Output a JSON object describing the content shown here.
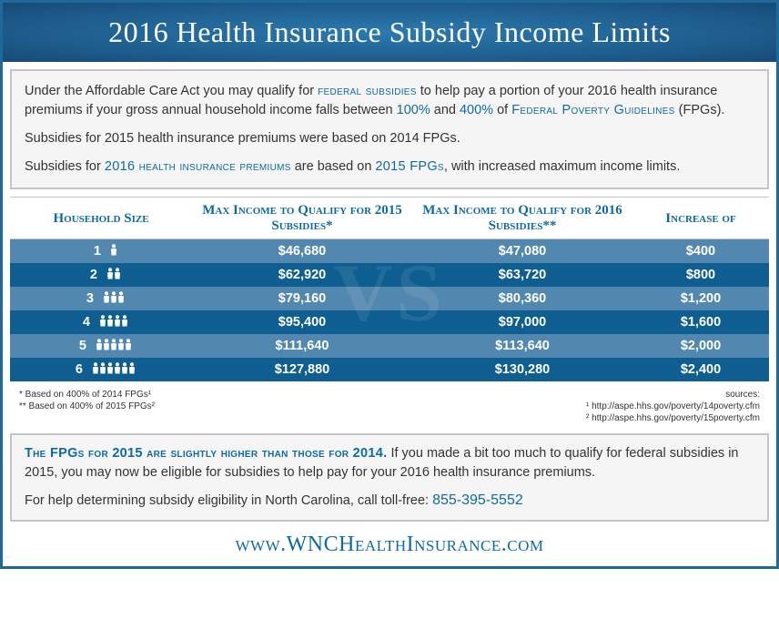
{
  "colors": {
    "primary": "#0d6aa8",
    "header_grad_center": "#2b7aaf",
    "header_grad_edge": "#174a75",
    "row_light": "#5288af",
    "row_dark": "#0e5e91",
    "box_bg": "#f5f5f5",
    "box_border": "#c5c5c5",
    "text": "#333333"
  },
  "title": "2016 Health Insurance Subsidy Income Limits",
  "intro": {
    "p1_a": "Under the Affordable Care Act you may qualify for ",
    "p1_sc1": "federal subsidies",
    "p1_b": " to help pay a portion of your 2016 health insurance premiums if your gross annual household income falls between ",
    "p1_hl1": "100%",
    "p1_c": " and ",
    "p1_hl2": "400%",
    "p1_d": " of ",
    "p1_sc2": "Federal Poverty Guidelines",
    "p1_e": " (FPGs).",
    "p2": "Subsidies for 2015 health insurance premiums were based on 2014 FPGs.",
    "p3_a": "Subsidies for ",
    "p3_sc1": "2016 health insurance premiums",
    "p3_b": " are based on ",
    "p3_sc2": "2015 FPGs",
    "p3_c": ", with increased maximum income limits."
  },
  "table": {
    "headers": {
      "household": "Household Size",
      "col2015": "Max Income to Qualify for 2015 Subsidies*",
      "col2016": "Max Income to Qualify for 2016 Subsidies**",
      "increase": "Increase of"
    },
    "watermark": "VS",
    "rows": [
      {
        "size": "1",
        "people": "♦",
        "y2015": "$46,680",
        "y2016": "$47,080",
        "inc": "$400"
      },
      {
        "size": "2",
        "people": "♦♦",
        "y2015": "$62,920",
        "y2016": "$63,720",
        "inc": "$800"
      },
      {
        "size": "3",
        "people": "♦♦♦",
        "y2015": "$79,160",
        "y2016": "$80,360",
        "inc": "$1,200"
      },
      {
        "size": "4",
        "people": "♦♦♦♦",
        "y2015": "$95,400",
        "y2016": "$97,000",
        "inc": "$1,600"
      },
      {
        "size": "5",
        "people": "♦♦♦♦♦",
        "y2015": "$111,640",
        "y2016": "$113,640",
        "inc": "$2,000"
      },
      {
        "size": "6",
        "people": "♦♦♦♦♦♦",
        "y2015": "$127,880",
        "y2016": "$130,280",
        "inc": "$2,400"
      }
    ]
  },
  "notes": {
    "left1": "* Based on 400% of 2014 FPGs¹",
    "left2": "** Based on 400% of 2015 FPGs²",
    "right_label": "sources:",
    "right1": "¹ http://aspe.hhs.gov/poverty/14poverty.cfm",
    "right2": "² http://aspe.hhs.gov/poverty/15poverty.cfm"
  },
  "bottom": {
    "p1_sc": "The FPGs for 2015 are slightly higher than those for 2014.",
    "p1_rest": " If you made a bit too much to qualify for federal subsidies in 2015, you may now be eligible for subsidies to help pay for your 2016 health insurance premiums.",
    "p2_a": "For help determining subsidy eligibility in North Carolina, call toll-free: ",
    "phone": "855-395-5552"
  },
  "url": "www.WNCHealthInsurance.com"
}
